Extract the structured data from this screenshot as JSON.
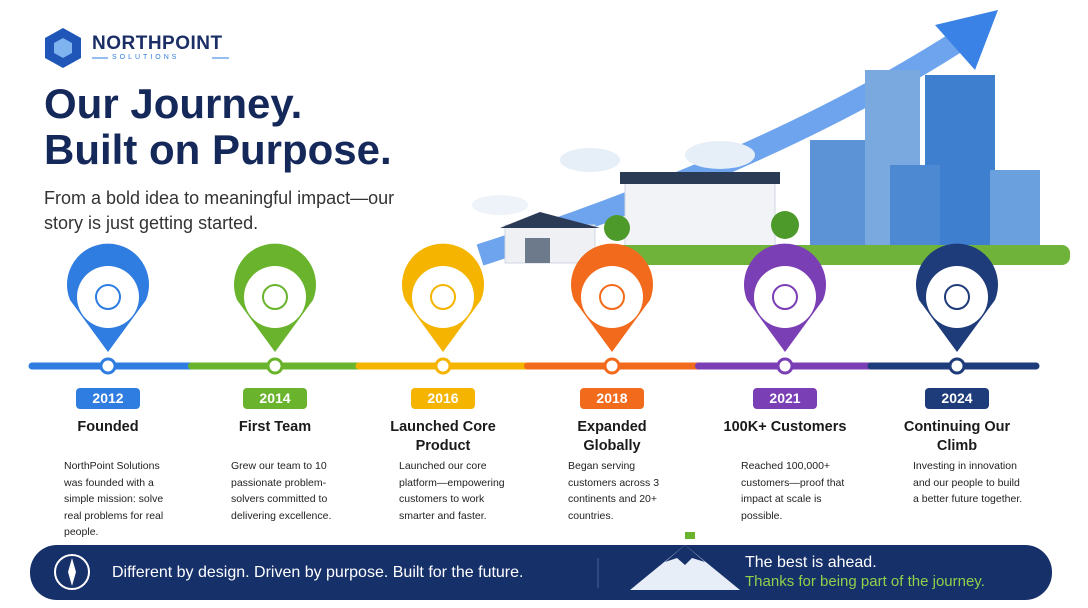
{
  "brand": {
    "name": "NORTHPOINT",
    "tagline": "SOLUTIONS"
  },
  "hero": {
    "title_lines": [
      "Our Journey.",
      "Built on Purpose."
    ],
    "subtitle": "From a bold idea to meaningful impact—our story is just getting started."
  },
  "milestones": [
    {
      "year": "2012",
      "title": "Founded",
      "description": "NorthPoint Solutions was founded with a simple mission: solve real problems for real people.",
      "color": "#2f7de1"
    },
    {
      "year": "2014",
      "title": "First Team",
      "description": "Grew our team to 10 passionate problem-solvers committed to delivering excellence.",
      "color": "#6ab42d"
    },
    {
      "year": "2016",
      "title": "Launched Core Product",
      "description": "Launched our core platform—empowering customers to work smarter and faster.",
      "color": "#f4b400"
    },
    {
      "year": "2018",
      "title": "Expanded Globally",
      "description": "Began serving customers across 3 continents and 20+ countries.",
      "color": "#f26b1d"
    },
    {
      "year": "2021",
      "title": "100K+ Customers",
      "description": "Reached 100,000+ customers—proof that impact at scale is possible.",
      "color": "#7b3fb5"
    },
    {
      "year": "2024",
      "title": "Continuing Our Climb",
      "description": "Investing in innovation and our people to build a better future together.",
      "color": "#1f3c7a"
    }
  ],
  "footer": {
    "motto": "Different by design. Driven by purpose. Built for the future.",
    "closing": "The best is ahead.",
    "thanks": "Thanks for being part of the journey."
  }
}
